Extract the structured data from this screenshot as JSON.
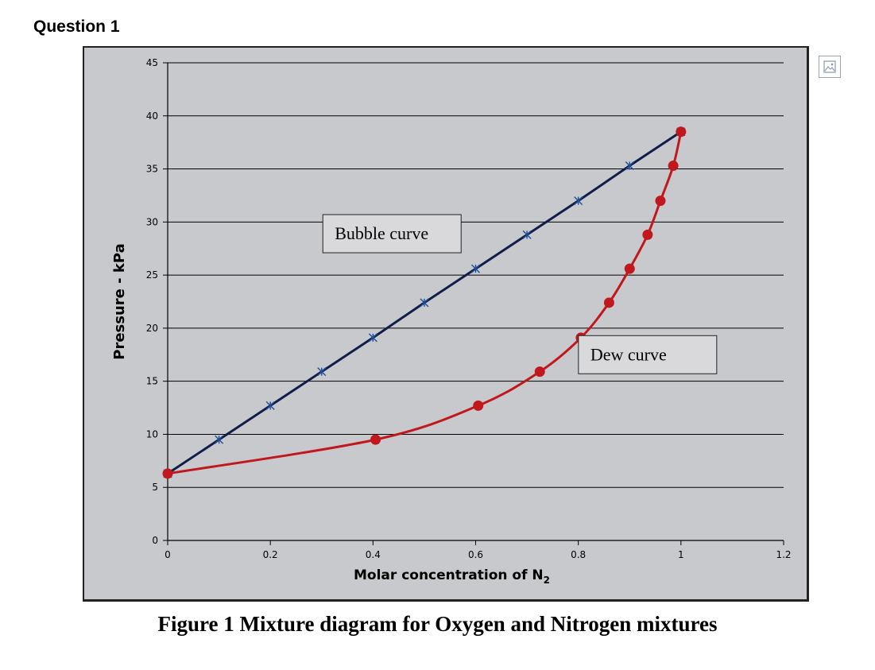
{
  "page": {
    "question_title": "Question 1",
    "caption": "Figure 1 Mixture diagram for Oxygen and Nitrogen mixtures",
    "image_icon": "image-placeholder-icon"
  },
  "chart_data": {
    "type": "line",
    "title": "",
    "xlabel": "Molar concentration of N",
    "xlabel_subscript": "2",
    "ylabel": "Pressure - kPa",
    "xlim": [
      0,
      1.2
    ],
    "ylim": [
      0,
      45
    ],
    "x_ticks": [
      0,
      0.2,
      0.4,
      0.6,
      0.8,
      1,
      1.2
    ],
    "x_tick_labels": [
      "0",
      "0.2",
      "0.4",
      "0.6",
      "0.8",
      "1",
      "1.2"
    ],
    "y_ticks": [
      0,
      5,
      10,
      15,
      20,
      25,
      30,
      35,
      40,
      45
    ],
    "y_tick_labels": [
      "0",
      "5",
      "10",
      "15",
      "20",
      "25",
      "30",
      "35",
      "40",
      "45"
    ],
    "grid": "horizontal",
    "background_color": "#c8c9cd",
    "series": [
      {
        "name": "Bubble curve",
        "color": "#0f1f4a",
        "marker": "asterisk",
        "points": [
          [
            0,
            6.3
          ],
          [
            0.1,
            9.5
          ],
          [
            0.2,
            12.7
          ],
          [
            0.3,
            15.9
          ],
          [
            0.4,
            19.1
          ],
          [
            0.5,
            22.4
          ],
          [
            0.6,
            25.6
          ],
          [
            0.7,
            28.8
          ],
          [
            0.8,
            32.0
          ],
          [
            0.9,
            35.3
          ],
          [
            1.0,
            38.5
          ]
        ]
      },
      {
        "name": "Dew curve",
        "color": "#c0181c",
        "marker": "circle",
        "points": [
          [
            0,
            6.3
          ],
          [
            0.405,
            9.5
          ],
          [
            0.605,
            12.7
          ],
          [
            0.725,
            15.9
          ],
          [
            0.805,
            19.1
          ],
          [
            0.86,
            22.4
          ],
          [
            0.9,
            25.6
          ],
          [
            0.935,
            28.8
          ],
          [
            0.96,
            32.0
          ],
          [
            0.985,
            35.3
          ],
          [
            1.0,
            38.5
          ]
        ]
      }
    ],
    "annotations": [
      {
        "text": "Bubble curve",
        "x": 0.437,
        "y": 28.9
      },
      {
        "text": "Dew curve",
        "x": 0.935,
        "y": 17.5
      }
    ]
  }
}
